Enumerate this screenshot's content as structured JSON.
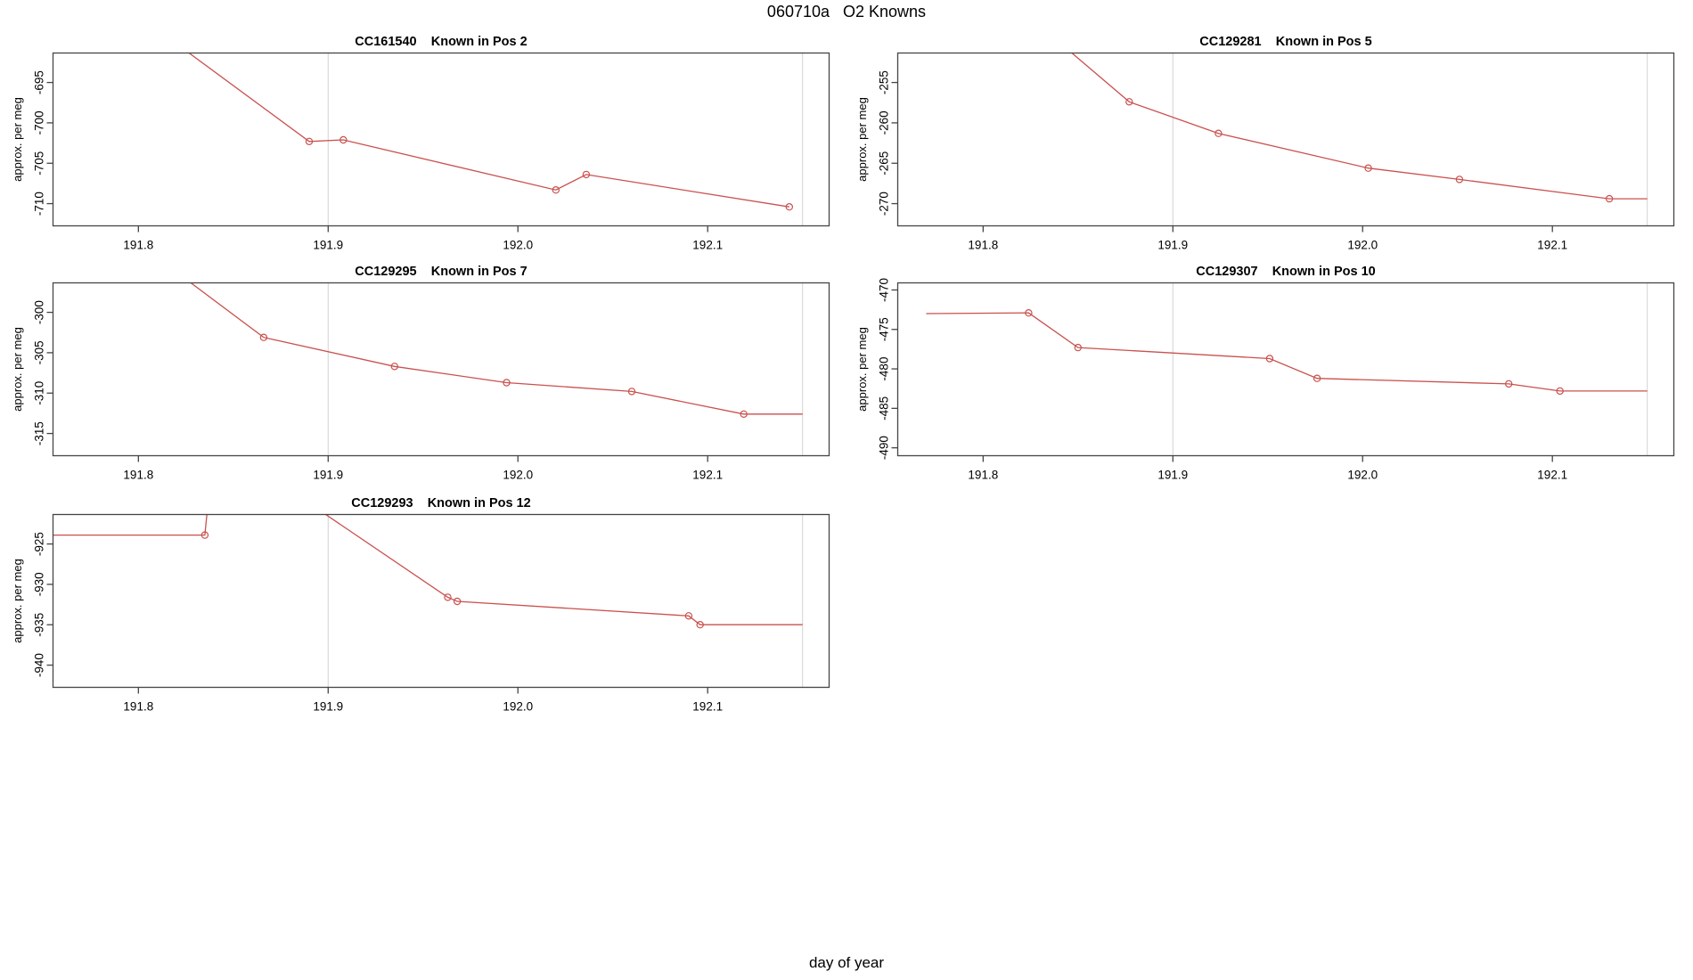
{
  "page": {
    "title": "060710a   O2 Knowns",
    "xlabel": "day of year"
  },
  "colors": {
    "line": "#c9514e",
    "grid": "#d6d6d6",
    "axis": "#454545",
    "text": "#000000",
    "background": "#ffffff"
  },
  "chart_data": [
    {
      "type": "line",
      "title": "CC161540    Known in Pos 2",
      "sample": "CC161540",
      "position_label": "Known in Pos 2",
      "ylabel": "approx. per meg",
      "xlim": [
        191.755,
        192.164
      ],
      "ylim": [
        -712.75,
        -691.35
      ],
      "x_ticks": [
        191.8,
        191.9,
        192.0,
        192.1
      ],
      "x_tick_labels": [
        "191.8",
        "191.9",
        "192.0",
        "192.1"
      ],
      "y_ticks": [
        -710,
        -705,
        -700,
        -695
      ],
      "y_tick_labels": [
        "-710",
        "-705",
        "-700",
        "-695"
      ],
      "gridlines_x": [
        191.9,
        192.15
      ],
      "line": [
        [
          191.79,
          -685.0
        ],
        [
          191.89,
          -702.3
        ],
        [
          191.908,
          -702.1
        ],
        [
          192.02,
          -708.3
        ],
        [
          192.036,
          -706.4
        ],
        [
          192.143,
          -710.4
        ]
      ],
      "markers": [
        [
          191.89,
          -702.3
        ],
        [
          191.908,
          -702.1
        ],
        [
          192.02,
          -708.3
        ],
        [
          192.036,
          -706.4
        ],
        [
          192.143,
          -710.4
        ]
      ],
      "grid": {
        "col": 0,
        "row": 0
      }
    },
    {
      "type": "line",
      "title": "CC129281    Known in Pos 5",
      "sample": "CC129281",
      "position_label": "Known in Pos 5",
      "ylabel": "approx. per meg",
      "xlim": [
        191.755,
        192.164
      ],
      "ylim": [
        -272.75,
        -251.35
      ],
      "x_ticks": [
        191.8,
        191.9,
        192.0,
        192.1
      ],
      "x_tick_labels": [
        "191.8",
        "191.9",
        "192.0",
        "192.1"
      ],
      "y_ticks": [
        -270,
        -265,
        -260,
        -255
      ],
      "y_tick_labels": [
        "-270",
        "-265",
        "-260",
        "-255"
      ],
      "gridlines_x": [
        191.9,
        192.15
      ],
      "line": [
        [
          191.845,
          -251.0
        ],
        [
          191.877,
          -257.4
        ],
        [
          191.924,
          -261.3
        ],
        [
          192.003,
          -265.6
        ],
        [
          192.051,
          -267.0
        ],
        [
          192.13,
          -269.4
        ],
        [
          192.15,
          -269.4
        ]
      ],
      "markers": [
        [
          191.877,
          -257.4
        ],
        [
          191.924,
          -261.3
        ],
        [
          192.003,
          -265.6
        ],
        [
          192.051,
          -267.0
        ],
        [
          192.13,
          -269.4
        ]
      ],
      "grid": {
        "col": 1,
        "row": 0
      }
    },
    {
      "type": "line",
      "title": "CC129295    Known in Pos 7",
      "sample": "CC129295",
      "position_label": "Known in Pos 7",
      "ylabel": "approx. per meg",
      "xlim": [
        191.755,
        192.164
      ],
      "ylim": [
        -317.75,
        -296.35
      ],
      "x_ticks": [
        191.8,
        191.9,
        192.0,
        192.1
      ],
      "x_tick_labels": [
        "191.8",
        "191.9",
        "192.0",
        "192.1"
      ],
      "y_ticks": [
        -315,
        -310,
        -305,
        -300
      ],
      "y_tick_labels": [
        "-315",
        "-310",
        "-305",
        "-300"
      ],
      "gridlines_x": [
        191.9,
        192.15
      ],
      "line": [
        [
          191.82,
          -295.0
        ],
        [
          191.866,
          -303.1
        ],
        [
          191.935,
          -306.7
        ],
        [
          191.994,
          -308.7
        ],
        [
          192.06,
          -309.8
        ],
        [
          192.119,
          -312.6
        ],
        [
          192.15,
          -312.6
        ]
      ],
      "markers": [
        [
          191.866,
          -303.1
        ],
        [
          191.935,
          -306.7
        ],
        [
          191.994,
          -308.7
        ],
        [
          192.06,
          -309.8
        ],
        [
          192.119,
          -312.6
        ]
      ],
      "grid": {
        "col": 0,
        "row": 1
      }
    },
    {
      "type": "line",
      "title": "CC129307    Known in Pos 10",
      "sample": "CC129307",
      "position_label": "Known in Pos 10",
      "ylabel": "approx. per meg",
      "xlim": [
        191.755,
        192.164
      ],
      "ylim": [
        -491.0,
        -469.1
      ],
      "x_ticks": [
        191.8,
        191.9,
        192.0,
        192.1
      ],
      "x_tick_labels": [
        "191.8",
        "191.9",
        "192.0",
        "192.1"
      ],
      "y_ticks": [
        -490,
        -485,
        -480,
        -475,
        -470
      ],
      "y_tick_labels": [
        "-490",
        "-485",
        "-480",
        "-475",
        "-470"
      ],
      "gridlines_x": [
        191.9,
        192.15
      ],
      "line": [
        [
          191.77,
          -473.0
        ],
        [
          191.824,
          -472.9
        ],
        [
          191.85,
          -477.3
        ],
        [
          191.951,
          -478.7
        ],
        [
          191.976,
          -481.2
        ],
        [
          192.077,
          -481.9
        ],
        [
          192.104,
          -482.8
        ],
        [
          192.15,
          -482.8
        ]
      ],
      "markers": [
        [
          191.824,
          -472.9
        ],
        [
          191.85,
          -477.3
        ],
        [
          191.951,
          -478.7
        ],
        [
          191.976,
          -481.2
        ],
        [
          192.077,
          -481.9
        ],
        [
          192.104,
          -482.8
        ]
      ],
      "grid": {
        "col": 1,
        "row": 1
      }
    },
    {
      "type": "line",
      "title": "CC129293    Known in Pos 12",
      "sample": "CC129293",
      "position_label": "Known in Pos 12",
      "ylabel": "approx. per meg",
      "xlim": [
        191.755,
        192.164
      ],
      "ylim": [
        -942.75,
        -921.35
      ],
      "x_ticks": [
        191.8,
        191.9,
        192.0,
        192.1
      ],
      "x_tick_labels": [
        "191.8",
        "191.9",
        "192.0",
        "192.1"
      ],
      "y_ticks": [
        -940,
        -935,
        -930,
        -925
      ],
      "y_tick_labels": [
        "-940",
        "-935",
        "-930",
        "-925"
      ],
      "gridlines_x": [
        191.9,
        192.15
      ],
      "line": [
        [
          191.755,
          -923.9
        ],
        [
          191.835,
          -923.9
        ],
        [
          191.84,
          -912.0
        ],
        [
          191.963,
          -931.6
        ],
        [
          191.968,
          -932.1
        ],
        [
          192.09,
          -933.9
        ],
        [
          192.096,
          -935.0
        ],
        [
          192.15,
          -935.0
        ]
      ],
      "markers": [
        [
          191.835,
          -923.9
        ],
        [
          191.963,
          -931.6
        ],
        [
          191.968,
          -932.1
        ],
        [
          192.09,
          -933.9
        ],
        [
          192.096,
          -935.0
        ]
      ],
      "grid": {
        "col": 0,
        "row": 2
      }
    }
  ]
}
